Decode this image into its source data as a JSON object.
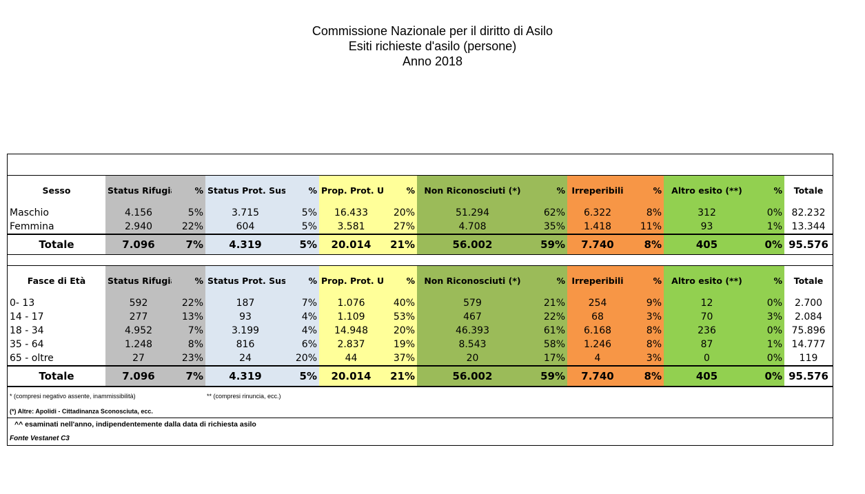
{
  "title": [
    "Commissione Nazionale per il diritto di Asilo",
    "Esiti richieste d'asilo (persone)",
    "Anno 2018"
  ],
  "colors": {
    "status_rifugiato": "#bfbfbf",
    "status_sussidiaria": "#dce6f1",
    "umanitaria": "#ffff99",
    "non_riconosciuti": "#9bbb59",
    "irreperibili": "#f79646",
    "altro_esito": "#92d050"
  },
  "columns": [
    "Status Rifugiato",
    "%",
    "Status Prot. Sussidiaria",
    "%",
    "Prop. Prot. Umanitaria",
    "%",
    "Non Riconosciuti (*)",
    "%",
    "Irreperibili",
    "%",
    "Altro esito (**)",
    "%",
    "Totale"
  ],
  "sesso": {
    "label": "Sesso",
    "rows": [
      [
        "Maschio",
        "4.156",
        "5%",
        "3.715",
        "5%",
        "16.433",
        "20%",
        "51.294",
        "62%",
        "6.322",
        "8%",
        "312",
        "0%",
        "82.232"
      ],
      [
        "Femmina",
        "2.940",
        "22%",
        "604",
        "5%",
        "3.581",
        "27%",
        "4.708",
        "35%",
        "1.418",
        "11%",
        "93",
        "1%",
        "13.344"
      ]
    ],
    "total": [
      "Totale",
      "7.096",
      "7%",
      "4.319",
      "5%",
      "20.014",
      "21%",
      "56.002",
      "59%",
      "7.740",
      "8%",
      "405",
      "0%",
      "95.576"
    ]
  },
  "eta": {
    "label": "Fasce di Età",
    "rows": [
      [
        "0- 13",
        "592",
        "22%",
        "187",
        "7%",
        "1.076",
        "40%",
        "579",
        "21%",
        "254",
        "9%",
        "12",
        "0%",
        "2.700"
      ],
      [
        "14 - 17",
        "277",
        "13%",
        "93",
        "4%",
        "1.109",
        "53%",
        "467",
        "22%",
        "68",
        "3%",
        "70",
        "3%",
        "2.084"
      ],
      [
        "18 - 34",
        "4.952",
        "7%",
        "3.199",
        "4%",
        "14.948",
        "20%",
        "46.393",
        "61%",
        "6.168",
        "8%",
        "236",
        "0%",
        "75.896"
      ],
      [
        "35 - 64",
        "1.248",
        "8%",
        "816",
        "6%",
        "2.837",
        "19%",
        "8.543",
        "58%",
        "1.246",
        "8%",
        "87",
        "1%",
        "14.777"
      ],
      [
        "65 - oltre",
        "27",
        "23%",
        "24",
        "20%",
        "44",
        "37%",
        "20",
        "17%",
        "4",
        "3%",
        "0",
        "0%",
        "119"
      ]
    ],
    "total": [
      "Totale",
      "7.096",
      "7%",
      "4.319",
      "5%",
      "20.014",
      "21%",
      "56.002",
      "59%",
      "7.740",
      "8%",
      "405",
      "0%",
      "95.576"
    ]
  },
  "notes": {
    "n1": "* (compresi negativo assente, inammissibilità)",
    "n2": "** (compresi rinuncia, ecc.)",
    "n3": "(*) Altre:  Apolidi - Cittadinanza Sconosciuta, ecc.",
    "n4": "^^ esaminati nell'anno, indipendentemente dalla data di richiesta asilo",
    "n5": "Fonte Vestanet C3"
  }
}
